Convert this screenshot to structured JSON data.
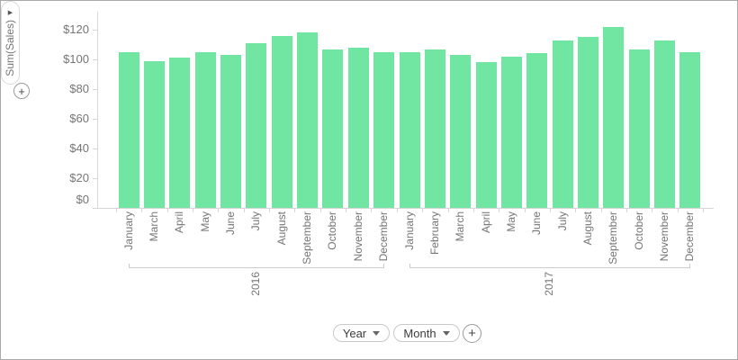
{
  "colors": {
    "bar": "#71e6a2",
    "axis": "#d6d6d6",
    "bracket": "#cccccc",
    "label_text": "#757575",
    "control_text": "#3b3b3b",
    "frame_border": "#a9a9a9"
  },
  "left_panel": {
    "add_button_label": "+",
    "measure_pill": {
      "label": "Sum(Sales)",
      "arrow_icon": "▶"
    }
  },
  "bottom_panel": {
    "year_button_label": "Year",
    "month_button_label": "Month",
    "add_button_label": "+"
  },
  "chart_data": {
    "type": "bar",
    "title": "",
    "xlabel": "",
    "ylabel": "Sum(Sales)",
    "ylim": [
      0,
      130
    ],
    "grid": false,
    "legend_position": "none",
    "y_ticks": [
      {
        "label": "$0",
        "value": 0
      },
      {
        "label": "$20",
        "value": 20
      },
      {
        "label": "$40",
        "value": 40
      },
      {
        "label": "$60",
        "value": 60
      },
      {
        "label": "$80",
        "value": 80
      },
      {
        "label": "$100",
        "value": 100
      },
      {
        "label": "$120",
        "value": 120
      }
    ],
    "groups": [
      {
        "label": "2016",
        "categories": [
          "January",
          "March",
          "April",
          "May",
          "June",
          "July",
          "August",
          "September",
          "October",
          "November",
          "December"
        ],
        "values": [
          105,
          99,
          101,
          105,
          103,
          111,
          116,
          118,
          107,
          108,
          105
        ]
      },
      {
        "label": "2017",
        "categories": [
          "January",
          "February",
          "March",
          "April",
          "May",
          "June",
          "July",
          "August",
          "September",
          "October",
          "November",
          "December"
        ],
        "values": [
          105,
          107,
          103,
          98,
          102,
          104,
          113,
          115,
          122,
          107,
          113,
          105
        ]
      }
    ]
  }
}
